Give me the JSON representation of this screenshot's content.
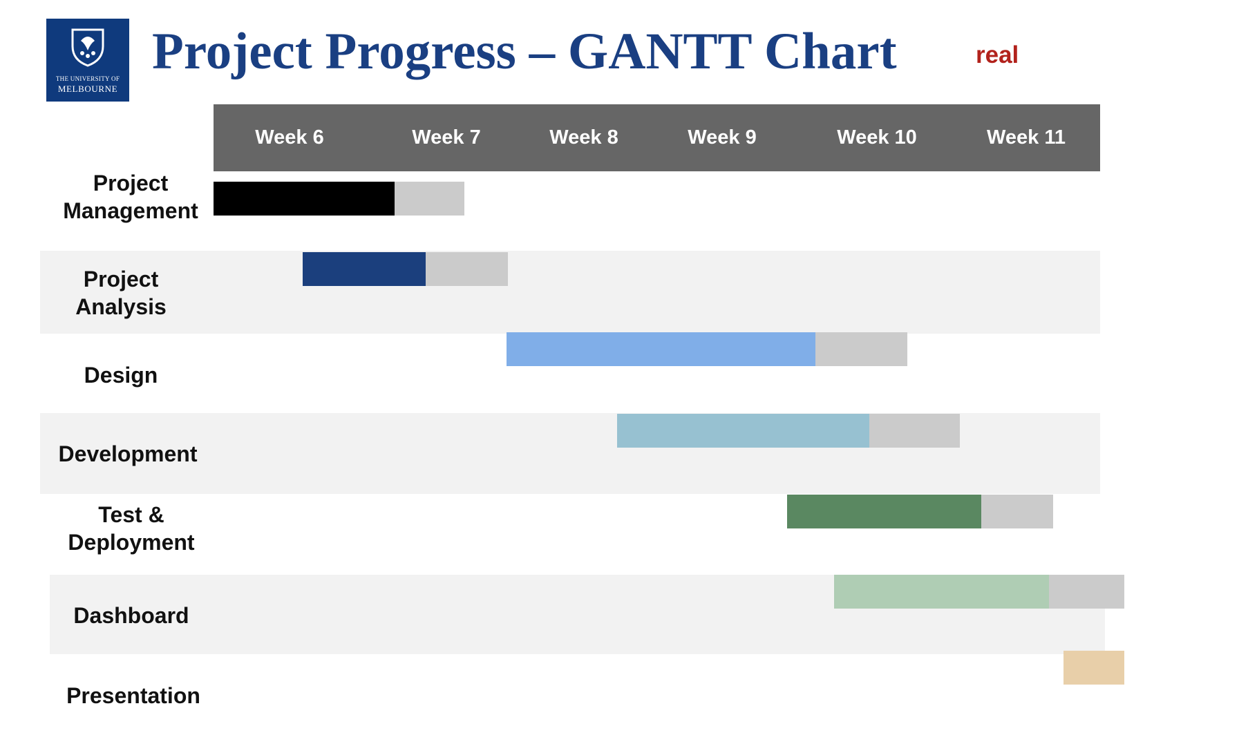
{
  "logo": {
    "line1": "THE UNIVERSITY OF",
    "line2": "MELBOURNE"
  },
  "title": "Project Progress – GANTT Chart",
  "status_tag": "real",
  "colors": {
    "header": "#666666",
    "band": "#f2f2f2",
    "remaining": "#cbcbcb",
    "title": "#1a3f82",
    "status_tag": "#b2221c"
  },
  "chart_data": {
    "type": "gantt",
    "x_unit": "week",
    "x_range": [
      5.5,
      11.8
    ],
    "weeks": [
      "Week 6",
      "Week 7",
      "Week 8",
      "Week 9",
      "Week 10",
      "Week 11"
    ],
    "tasks": [
      {
        "name": "Project\nManagement",
        "start": 5.5,
        "progress_end": 6.78,
        "end": 7.27,
        "color": "#000000"
      },
      {
        "name": "Project\nAnalysis",
        "start": 6.13,
        "progress_end": 7.0,
        "end": 7.58,
        "color": "#1b3f7d"
      },
      {
        "name": "Design",
        "start": 7.57,
        "progress_end": 9.75,
        "end": 10.4,
        "color": "#80aee8"
      },
      {
        "name": "Development",
        "start": 8.35,
        "progress_end": 10.13,
        "end": 10.77,
        "color": "#97c1d1"
      },
      {
        "name": "Test &\nDeployment",
        "start": 9.55,
        "progress_end": 10.92,
        "end": 11.43,
        "color": "#5a8861"
      },
      {
        "name": "Dashboard",
        "start": 9.88,
        "progress_end": 11.4,
        "end": 11.93,
        "color": "#afcdb4"
      },
      {
        "name": "Presentation",
        "start": 11.5,
        "progress_end": 11.93,
        "end": 11.93,
        "color": "#e8cfa9"
      }
    ]
  }
}
